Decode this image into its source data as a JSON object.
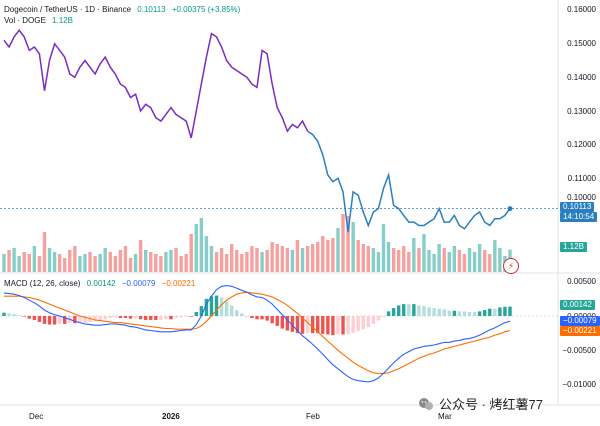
{
  "header": {
    "symbol": "Dogecoin / TetherUS · 1D · Binance",
    "last": "0.10113",
    "change": "+0.00375 (+3.85%)",
    "vol_label": "Vol · DOGE",
    "vol_value": "1.12B"
  },
  "macd": {
    "label": "MACD (12, 26, close)",
    "hist": "0.00142",
    "macd_line": "−0.00079",
    "signal": "−0.00221"
  },
  "price_axis": [
    "0.16000",
    "0.15000",
    "0.14000",
    "0.13000",
    "0.12000",
    "0.11000",
    "0.10000"
  ],
  "price_tag": {
    "value": "0.10113",
    "countdown": "14:10:54"
  },
  "vol_tag": "1.12B",
  "macd_axis": [
    "0.00500",
    "0.00000",
    "−0.00500",
    "−0.01000"
  ],
  "macd_tags": {
    "hist": "0.00142",
    "macd": "−0.00079",
    "signal": "−0.00221"
  },
  "x_axis": [
    "Dec",
    "2026",
    "Feb",
    "Mar"
  ],
  "watermark": "公众号 · 烤红薯77",
  "colors": {
    "price_up": "#7b2cbf",
    "price_down": "#2a7fc0",
    "bull": "#26a69a",
    "bear": "#ef5350",
    "macd": "#2962ff",
    "signal": "#ff6d00"
  },
  "chart_data": {
    "type": "line",
    "title": "Dogecoin / TetherUS · 1D · Binance",
    "ylim": [
      0.095,
      0.162
    ],
    "series": [
      {
        "name": "DOGE/USDT close",
        "values": [
          0.151,
          0.149,
          0.152,
          0.154,
          0.152,
          0.148,
          0.149,
          0.147,
          0.136,
          0.145,
          0.15,
          0.148,
          0.146,
          0.141,
          0.14,
          0.143,
          0.145,
          0.143,
          0.141,
          0.144,
          0.146,
          0.143,
          0.141,
          0.138,
          0.137,
          0.134,
          0.135,
          0.13,
          0.132,
          0.131,
          0.128,
          0.127,
          0.129,
          0.131,
          0.129,
          0.128,
          0.127,
          0.122,
          0.13,
          0.138,
          0.146,
          0.153,
          0.152,
          0.149,
          0.145,
          0.143,
          0.142,
          0.141,
          0.14,
          0.138,
          0.137,
          0.148,
          0.147,
          0.138,
          0.131,
          0.128,
          0.124,
          0.126,
          0.125,
          0.127,
          0.124,
          0.123,
          0.121,
          0.117,
          0.111,
          0.109,
          0.11,
          0.106,
          0.094,
          0.106,
          0.105,
          0.1,
          0.096,
          0.1,
          0.101,
          0.107,
          0.111,
          0.102,
          0.101,
          0.099,
          0.097,
          0.097,
          0.096,
          0.096,
          0.097,
          0.098,
          0.101,
          0.097,
          0.097,
          0.099,
          0.096,
          0.095,
          0.097,
          0.099,
          0.1,
          0.097,
          0.096,
          0.098,
          0.098,
          0.099,
          0.101
        ]
      },
      {
        "name": "Vol · DOGE",
        "values": [
          0.9,
          1.1,
          1.2,
          0.8,
          1.0,
          0.9,
          1.3,
          0.8,
          2.0,
          1.2,
          1.0,
          0.9,
          0.7,
          1.1,
          1.3,
          0.8,
          0.9,
          1.0,
          0.8,
          0.9,
          1.2,
          1.0,
          0.8,
          1.1,
          1.3,
          0.7,
          0.9,
          1.6,
          1.1,
          1.0,
          0.9,
          0.8,
          1.0,
          1.1,
          1.2,
          0.8,
          0.9,
          1.9,
          2.4,
          2.7,
          1.8,
          1.3,
          1.0,
          1.2,
          0.9,
          1.4,
          1.1,
          0.9,
          1.0,
          1.3,
          1.2,
          1.0,
          1.1,
          1.5,
          1.4,
          1.3,
          1.2,
          1.1,
          1.6,
          1.2,
          1.3,
          1.4,
          1.5,
          1.8,
          1.6,
          1.7,
          2.2,
          2.9,
          2.8,
          2.5,
          1.6,
          1.4,
          1.3,
          1.2,
          1.0,
          2.4,
          1.5,
          1.2,
          1.1,
          1.3,
          1.0,
          1.7,
          1.2,
          1.9,
          1.1,
          0.9,
          1.4,
          1.2,
          1.0,
          1.3,
          1.1,
          0.9,
          1.2,
          1.0,
          1.4,
          1.1,
          0.9,
          1.6,
          1.2,
          0.8,
          1.12
        ]
      },
      {
        "name": "MACD",
        "values": [
          0.0035,
          0.0034,
          0.0033,
          0.0031,
          0.0028,
          0.0024,
          0.002,
          0.0015,
          0.0009,
          0.0005,
          0.0002,
          0.0,
          -0.0003,
          -0.0005,
          -0.0008,
          -0.001,
          -0.0012,
          -0.0013,
          -0.0014,
          -0.0014,
          -0.0013,
          -0.0012,
          -0.0012,
          -0.0013,
          -0.0014,
          -0.0016,
          -0.0017,
          -0.0019,
          -0.0021,
          -0.0022,
          -0.0023,
          -0.0024,
          -0.0024,
          -0.0024,
          -0.0023,
          -0.0022,
          -0.0021,
          -0.0021,
          -0.0013,
          0.0,
          0.0018,
          0.003,
          0.004,
          0.0045,
          0.0046,
          0.0045,
          0.0042,
          0.0039,
          0.0036,
          0.0032,
          0.0029,
          0.0028,
          0.0024,
          0.0018,
          0.001,
          0.0002,
          -0.0006,
          -0.0014,
          -0.0022,
          -0.003,
          -0.0036,
          -0.0043,
          -0.005,
          -0.0058,
          -0.0066,
          -0.0074,
          -0.008,
          -0.0086,
          -0.0092,
          -0.0096,
          -0.0098,
          -0.0099,
          -0.01,
          -0.0098,
          -0.0094,
          -0.0087,
          -0.0079,
          -0.0071,
          -0.0064,
          -0.0058,
          -0.0054,
          -0.005,
          -0.0048,
          -0.0046,
          -0.0045,
          -0.0044,
          -0.0042,
          -0.004,
          -0.004,
          -0.0038,
          -0.0037,
          -0.0035,
          -0.0034,
          -0.0032,
          -0.0029,
          -0.0025,
          -0.0021,
          -0.0018,
          -0.0014,
          -0.001,
          -0.00079
        ]
      },
      {
        "name": "Signal",
        "values": [
          0.003,
          0.003,
          0.003,
          0.003,
          0.0029,
          0.0028,
          0.0026,
          0.0024,
          0.0021,
          0.0018,
          0.0015,
          0.0012,
          0.0009,
          0.0006,
          0.0003,
          0.0,
          -0.0002,
          -0.0004,
          -0.0006,
          -0.0007,
          -0.0008,
          -0.0009,
          -0.001,
          -0.001,
          -0.0011,
          -0.0012,
          -0.0013,
          -0.0014,
          -0.0015,
          -0.0016,
          -0.0017,
          -0.0018,
          -0.0019,
          -0.0019,
          -0.002,
          -0.002,
          -0.002,
          -0.002,
          -0.0019,
          -0.0015,
          -0.0008,
          0.0,
          0.0009,
          0.0017,
          0.0024,
          0.0029,
          0.0033,
          0.0035,
          0.0036,
          0.0035,
          0.0034,
          0.0033,
          0.0031,
          0.0029,
          0.0025,
          0.0021,
          0.0016,
          0.001,
          0.0004,
          -0.0003,
          -0.001,
          -0.0017,
          -0.0024,
          -0.0031,
          -0.0038,
          -0.0045,
          -0.0052,
          -0.0058,
          -0.0064,
          -0.007,
          -0.0075,
          -0.0079,
          -0.0083,
          -0.0086,
          -0.0087,
          -0.0087,
          -0.0086,
          -0.0083,
          -0.008,
          -0.0076,
          -0.0072,
          -0.0068,
          -0.0064,
          -0.0061,
          -0.0058,
          -0.0056,
          -0.0053,
          -0.005,
          -0.0048,
          -0.0046,
          -0.0044,
          -0.0042,
          -0.004,
          -0.0038,
          -0.0036,
          -0.0034,
          -0.0032,
          -0.0029,
          -0.0027,
          -0.0024,
          -0.00221
        ]
      }
    ]
  }
}
